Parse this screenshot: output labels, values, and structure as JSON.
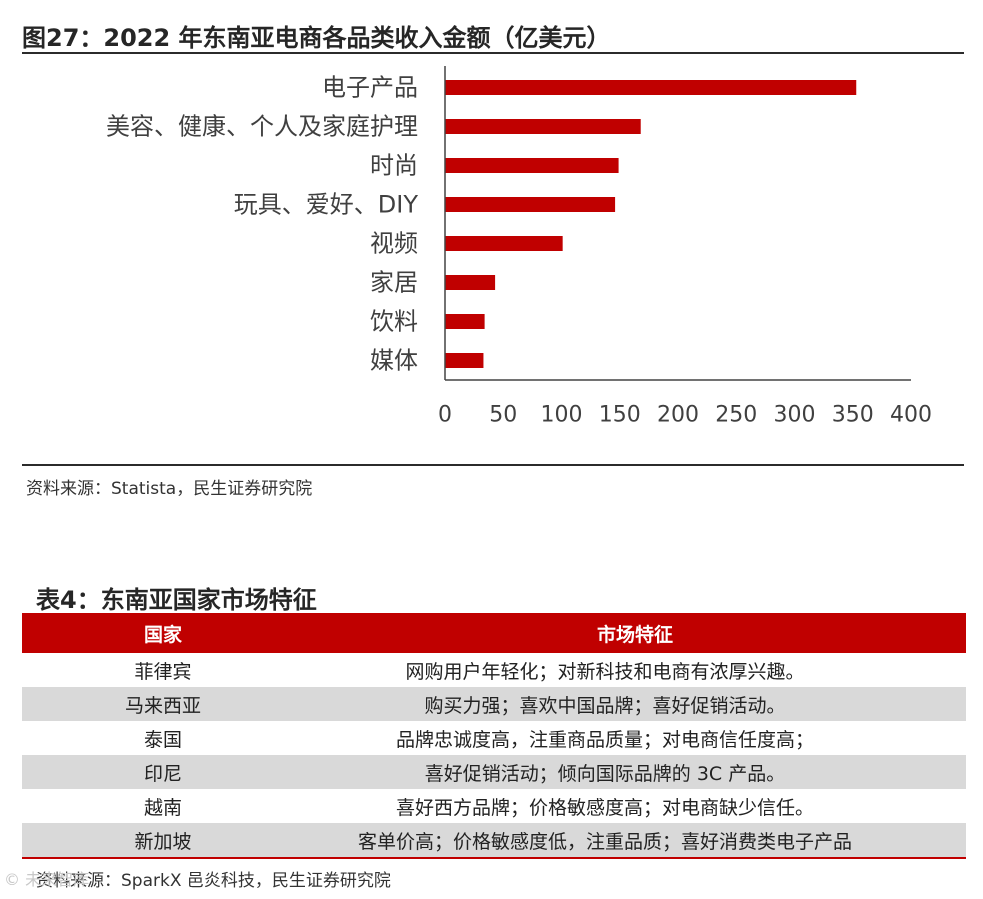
{
  "figure": {
    "title": "图27：2022 年东南亚电商各品类收入金额（亿美元）",
    "source": "资料来源：Statista，民生证券研究院"
  },
  "chart_data": {
    "type": "bar",
    "orientation": "horizontal",
    "categories": [
      "电子产品",
      "美容、健康、个人及家庭护理",
      "时尚",
      "玩具、爱好、DIY",
      "视频",
      "家居",
      "饮料",
      "媒体"
    ],
    "values": [
      353,
      168,
      149,
      146,
      101,
      43,
      34,
      33
    ],
    "xlim": [
      0,
      400
    ],
    "xticks": [
      0,
      50,
      100,
      150,
      200,
      250,
      300,
      350,
      400
    ],
    "grid": false,
    "bar_color": "#c00000"
  },
  "table": {
    "title": "表4：东南亚国家市场特征",
    "headers": [
      "国家",
      "市场特征"
    ],
    "rows": [
      [
        "菲律宾",
        "网购用户年轻化；对新科技和电商有浓厚兴趣。"
      ],
      [
        "马来西亚",
        "购买力强；喜欢中国品牌；喜好促销活动。"
      ],
      [
        "泰国",
        "品牌忠诚度高，注重商品质量；对电商信任度高；"
      ],
      [
        "印尼",
        "喜好促销活动；倾向国际品牌的 3C 产品。"
      ],
      [
        "越南",
        "喜好西方品牌；价格敏感度高；对电商缺少信任。"
      ],
      [
        "新加坡",
        "客单价高；价格敏感度低，注重品质；喜好消费类电子产品"
      ]
    ],
    "header_color": "#c00000",
    "shade_color": "#d9d9d9",
    "source": "资料来源：SparkX 邑炎科技，民生证券研究院"
  },
  "watermark": "© 未来智库"
}
